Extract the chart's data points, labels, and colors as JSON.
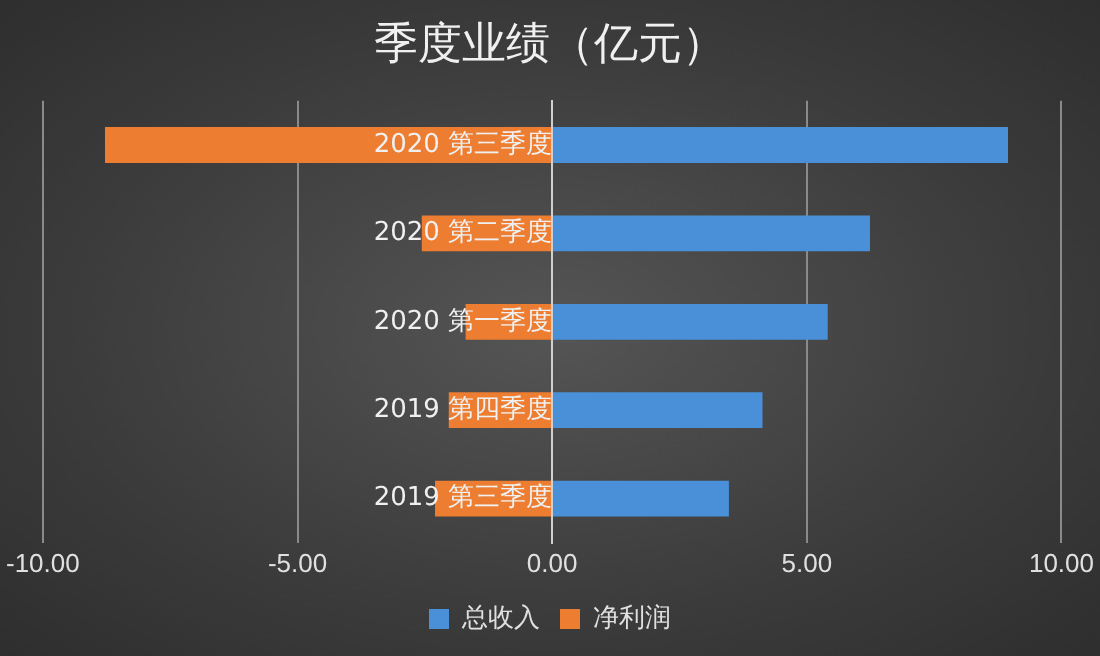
{
  "chart_data": {
    "type": "bar",
    "orientation": "horizontal",
    "stacked": true,
    "title": "季度业绩（亿元）",
    "categories": [
      "2020 第三季度",
      "2020 第二季度",
      "2020 第一季度",
      "2019 第四季度",
      "2019 第三季度"
    ],
    "series": [
      {
        "name": "总收入",
        "color": "#4a90d9",
        "values": [
          8.95,
          6.24,
          5.41,
          4.13,
          3.47
        ]
      },
      {
        "name": "净利润",
        "color": "#ed7d31",
        "values": [
          -8.78,
          -2.56,
          -1.7,
          -2.03,
          -2.3
        ]
      }
    ],
    "xlim": [
      -10,
      10
    ],
    "xticks": [
      {
        "value": -10,
        "label": "-10.00"
      },
      {
        "value": -5,
        "label": "-5.00"
      },
      {
        "value": 0,
        "label": "0.00"
      },
      {
        "value": 5,
        "label": "5.00"
      },
      {
        "value": 10,
        "label": "10.00"
      }
    ],
    "grid": "x",
    "legend": "bottom"
  }
}
